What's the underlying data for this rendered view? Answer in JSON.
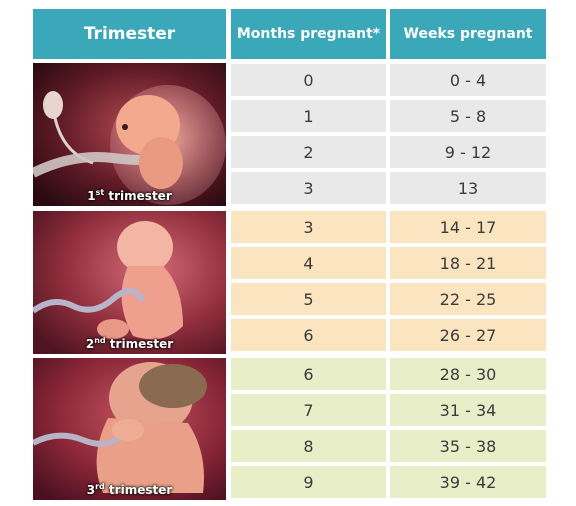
{
  "header": {
    "trimester": "Trimester",
    "months": "Months pregnant*",
    "weeks": "Weeks pregnant"
  },
  "trimesters": [
    {
      "num": "1",
      "sup": "st",
      "word": "trimester",
      "rows": [
        {
          "months": "0",
          "weeks": "0 - 4"
        },
        {
          "months": "1",
          "weeks": "5 - 8"
        },
        {
          "months": "2",
          "weeks": "9 - 12"
        },
        {
          "months": "3",
          "weeks": "13"
        }
      ]
    },
    {
      "num": "2",
      "sup": "nd",
      "word": "trimester",
      "rows": [
        {
          "months": "3",
          "weeks": "14 - 17"
        },
        {
          "months": "4",
          "weeks": "18 - 21"
        },
        {
          "months": "5",
          "weeks": "22 - 25"
        },
        {
          "months": "6",
          "weeks": "26 - 27"
        }
      ]
    },
    {
      "num": "3",
      "sup": "rd",
      "word": "trimester",
      "rows": [
        {
          "months": "6",
          "weeks": "28 - 30"
        },
        {
          "months": "7",
          "weeks": "31 - 34"
        },
        {
          "months": "8",
          "weeks": "35 - 38"
        },
        {
          "months": "9",
          "weeks": "39 - 42"
        }
      ]
    }
  ],
  "colors": {
    "header": "#3aa8b8",
    "trimester1_rows": "#e9e9e9",
    "trimester2_rows": "#fbe5c1",
    "trimester3_rows": "#e8efc8"
  }
}
